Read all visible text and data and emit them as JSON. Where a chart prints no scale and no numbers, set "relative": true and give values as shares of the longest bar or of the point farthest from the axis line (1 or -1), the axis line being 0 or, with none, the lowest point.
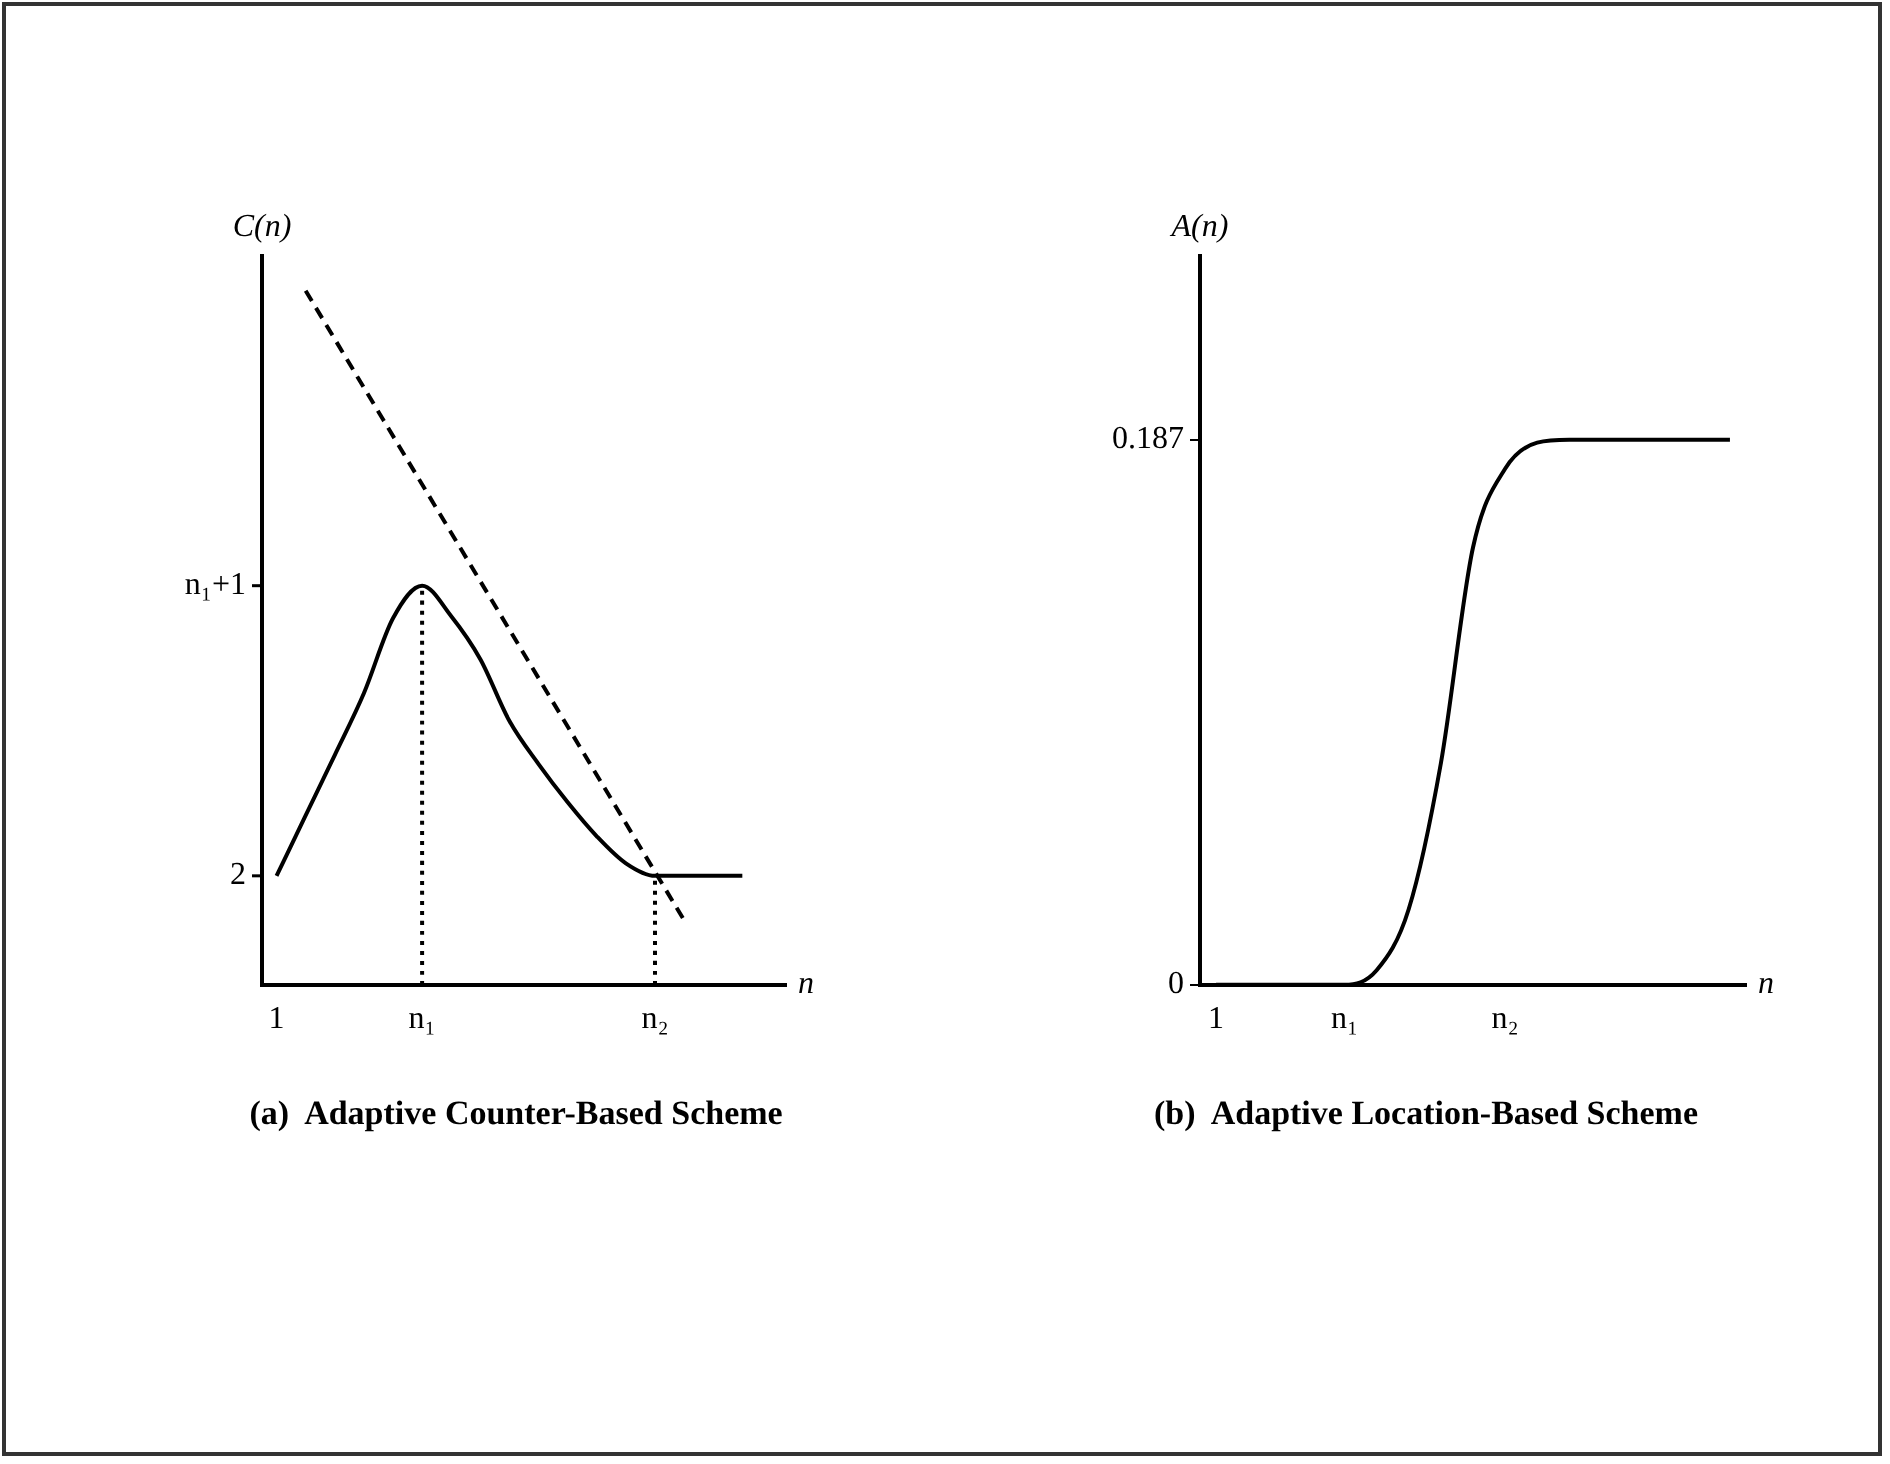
{
  "chart_data": [
    {
      "type": "line",
      "title": "(a)  Adaptive Counter-Based Scheme",
      "xlabel": "n",
      "ylabel": "C(n)",
      "relative": true,
      "categories": [
        "1",
        null,
        null,
        null,
        null,
        "n₁",
        null,
        null,
        null,
        null,
        null,
        null,
        null,
        "n₂",
        null,
        null,
        null,
        null
      ],
      "annotations": [
        {
          "text": "2",
          "x": "1",
          "y": 0.157
        },
        "n₁+1"
      ],
      "grid": false,
      "legend": false,
      "marker": "none",
      "series": [
        {
          "color": "#000000",
          "line_style": "solid",
          "values": [
            0.157,
            0.244,
            0.331,
            0.42,
            0.528,
            0.575,
            0.531,
            0.469,
            0.38,
            0.318,
            0.263,
            0.214,
            0.175,
            0.157,
            0.157,
            0.157,
            0.157,
            null
          ]
        },
        {
          "color": "#000000",
          "line_style": "dashed",
          "values": [
            null,
            1,
            null,
            null,
            null,
            null,
            null,
            null,
            null,
            null,
            null,
            null,
            null,
            null,
            0.093,
            null,
            null,
            null
          ]
        },
        {
          "color": "#000000",
          "line_style": "dotted",
          "x": [
            "n₁",
            "n₁"
          ],
          "values": [
            0,
            0.575
          ]
        },
        {
          "color": "#000000",
          "line_style": "dotted",
          "x": [
            "n₂",
            "n₂"
          ],
          "values": [
            0,
            0.157
          ]
        }
      ]
    },
    {
      "type": "line",
      "title": "(b)  Adaptive Location-Based Scheme",
      "xlabel": "n",
      "ylabel": "A(n)",
      "ylim": [
        0,
        0.25
      ],
      "yticks": [
        0,
        0.187
      ],
      "categories": [
        "1",
        null,
        null,
        null,
        "n₁",
        null,
        null,
        null,
        null,
        "n₂",
        null,
        null,
        null,
        null,
        null,
        null,
        null
      ],
      "grid": false,
      "legend": false,
      "marker": "none",
      "series": [
        {
          "color": "#000000",
          "line_style": "solid",
          "values": [
            0,
            0,
            0,
            0,
            0,
            0.005,
            0.026,
            0.076,
            0.15,
            0.177,
            0.186,
            0.187,
            0.187,
            0.187,
            0.187,
            0.187,
            0.187
          ]
        }
      ]
    }
  ]
}
